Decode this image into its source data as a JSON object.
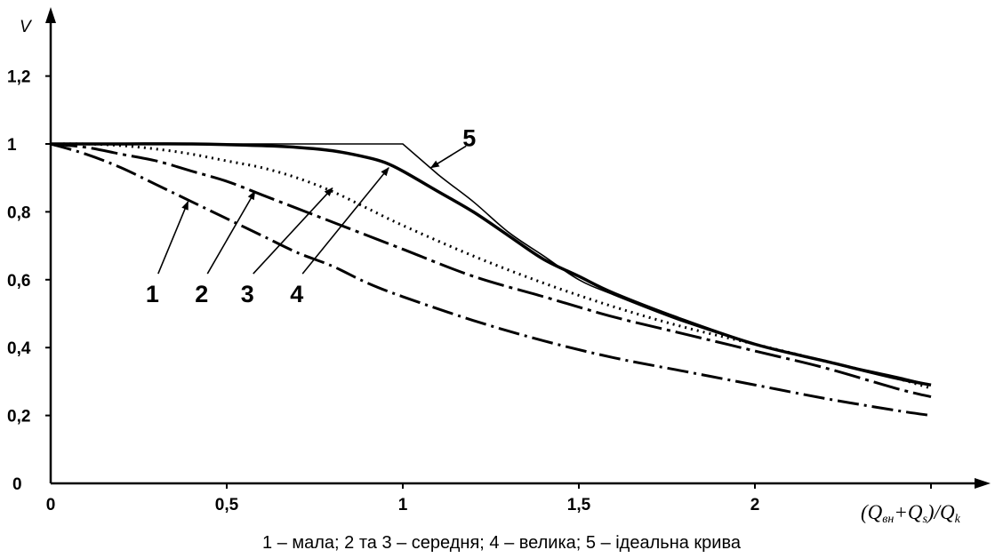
{
  "chart_data": {
    "type": "line",
    "ylabel": "V",
    "xlabel_parts": {
      "open": "(Q",
      "sub1": "вн",
      "plus": "+Q",
      "sub2": "s",
      "slash": ")/Q",
      "sub3": "k"
    },
    "xlim": [
      0,
      2.5
    ],
    "ylim": [
      0,
      1.3
    ],
    "x_ticks": [
      {
        "value": 0,
        "label": "0"
      },
      {
        "value": 0.5,
        "label": "0,5"
      },
      {
        "value": 1,
        "label": "1"
      },
      {
        "value": 1.5,
        "label": "1,5"
      },
      {
        "value": 2,
        "label": "2"
      }
    ],
    "y_ticks": [
      {
        "value": 0,
        "label": "0"
      },
      {
        "value": 0.2,
        "label": "0,2"
      },
      {
        "value": 0.4,
        "label": "0,4"
      },
      {
        "value": 0.6,
        "label": "0,6"
      },
      {
        "value": 0.8,
        "label": "0,8"
      },
      {
        "value": 1.0,
        "label": "1"
      },
      {
        "value": 1.2,
        "label": "1,2"
      }
    ],
    "grid": false,
    "series": [
      {
        "name": "1",
        "style": "dash-dot",
        "x": [
          0,
          0.1,
          0.2,
          0.3,
          0.4,
          0.5,
          0.6,
          0.7,
          0.8,
          0.9,
          1.0,
          1.2,
          1.4,
          1.6,
          1.8,
          2.0,
          2.2,
          2.4,
          2.5
        ],
        "y": [
          1.0,
          0.97,
          0.93,
          0.88,
          0.83,
          0.78,
          0.73,
          0.68,
          0.64,
          0.59,
          0.55,
          0.48,
          0.42,
          0.37,
          0.33,
          0.29,
          0.25,
          0.215,
          0.2
        ]
      },
      {
        "name": "2",
        "style": "long-dash",
        "x": [
          0,
          0.1,
          0.2,
          0.3,
          0.4,
          0.5,
          0.6,
          0.7,
          0.8,
          0.9,
          1.0,
          1.2,
          1.4,
          1.6,
          1.8,
          2.0,
          2.2,
          2.4,
          2.5
        ],
        "y": [
          1.0,
          0.99,
          0.97,
          0.95,
          0.92,
          0.89,
          0.85,
          0.81,
          0.77,
          0.73,
          0.69,
          0.61,
          0.55,
          0.49,
          0.44,
          0.39,
          0.34,
          0.28,
          0.255
        ]
      },
      {
        "name": "3",
        "style": "dotted",
        "x": [
          0,
          0.1,
          0.2,
          0.3,
          0.4,
          0.5,
          0.6,
          0.7,
          0.8,
          0.9,
          1.0,
          1.2,
          1.4,
          1.6,
          1.8,
          2.0,
          2.2,
          2.4,
          2.5
        ],
        "y": [
          1.0,
          1.0,
          0.995,
          0.985,
          0.97,
          0.95,
          0.93,
          0.9,
          0.86,
          0.81,
          0.76,
          0.67,
          0.59,
          0.52,
          0.46,
          0.41,
          0.36,
          0.31,
          0.28
        ]
      },
      {
        "name": "4",
        "style": "dash-dot-heavy",
        "x": [
          0,
          0.2,
          0.4,
          0.6,
          0.7,
          0.8,
          0.9,
          0.95,
          1.0,
          1.1,
          1.2,
          1.3,
          1.4,
          1.5,
          1.6,
          1.8,
          2.0,
          2.2,
          2.4,
          2.5
        ],
        "y": [
          1.0,
          1.0,
          1.0,
          0.995,
          0.99,
          0.98,
          0.96,
          0.945,
          0.92,
          0.86,
          0.8,
          0.73,
          0.66,
          0.61,
          0.56,
          0.48,
          0.41,
          0.36,
          0.31,
          0.29
        ]
      },
      {
        "name": "5",
        "style": "solid",
        "x": [
          0,
          1.0,
          1.1,
          1.2,
          1.3,
          1.4,
          1.5,
          1.6,
          1.8,
          2.0,
          2.2,
          2.4,
          2.5
        ],
        "y": [
          1.0,
          1.0,
          0.91,
          0.83,
          0.74,
          0.67,
          0.6,
          0.555,
          0.475,
          0.41,
          0.36,
          0.315,
          0.29
        ]
      }
    ],
    "annotations": [
      {
        "text": "1",
        "x": 0.29,
        "y": 0.56,
        "arrow_to_x": 0.39,
        "arrow_to_y": 0.83
      },
      {
        "text": "2",
        "x": 0.43,
        "y": 0.56,
        "arrow_to_x": 0.58,
        "arrow_to_y": 0.86
      },
      {
        "text": "3",
        "x": 0.56,
        "y": 0.56,
        "arrow_to_x": 0.8,
        "arrow_to_y": 0.87
      },
      {
        "text": "4",
        "x": 0.7,
        "y": 0.56,
        "arrow_to_x": 0.96,
        "arrow_to_y": 0.93
      },
      {
        "text": "5",
        "x": 1.19,
        "y": 1.02,
        "arrow_to_x": 1.08,
        "arrow_to_y": 0.93
      }
    ]
  },
  "caption": "1 – мала; 2 та 3 – середня; 4 – велика; 5 – ідеальна крива"
}
